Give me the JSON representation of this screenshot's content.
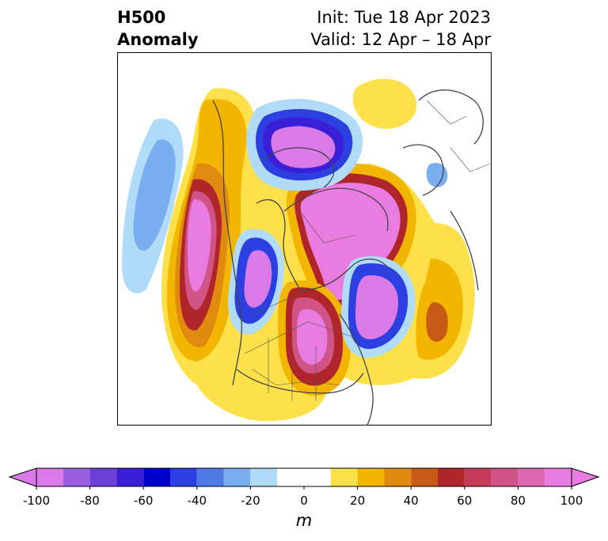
{
  "title": {
    "left_line1": "H500",
    "left_line2": "Anomaly",
    "right_line1": "Init: Tue 18 Apr 2023",
    "right_line2": "Valid: 12 Apr – 18 Apr"
  },
  "colorbar": {
    "unit": "m",
    "ticks": [
      "-100",
      "-80",
      "-60",
      "-40",
      "-20",
      "0",
      "20",
      "40",
      "60",
      "80",
      "100"
    ],
    "levels": [
      -100,
      -90,
      -80,
      -70,
      -60,
      -50,
      -40,
      -30,
      -20,
      -10,
      10,
      20,
      30,
      40,
      50,
      60,
      70,
      80,
      90,
      100
    ],
    "colors": [
      "#d97ae8",
      "#9a5fe0",
      "#6b3fd8",
      "#3a1fd6",
      "#0000cc",
      "#2c3fe0",
      "#4e7ae6",
      "#79aff0",
      "#b0dcfa",
      "#ffffff",
      "#fde04a",
      "#f2b600",
      "#e08a10",
      "#c85a18",
      "#b0252a",
      "#c43c5a",
      "#d05486",
      "#dc68b4",
      "#e97ce0"
    ],
    "extend": "both"
  },
  "map": {
    "projection": "polar-stereographic",
    "region": "Northern Hemisphere / North America"
  }
}
